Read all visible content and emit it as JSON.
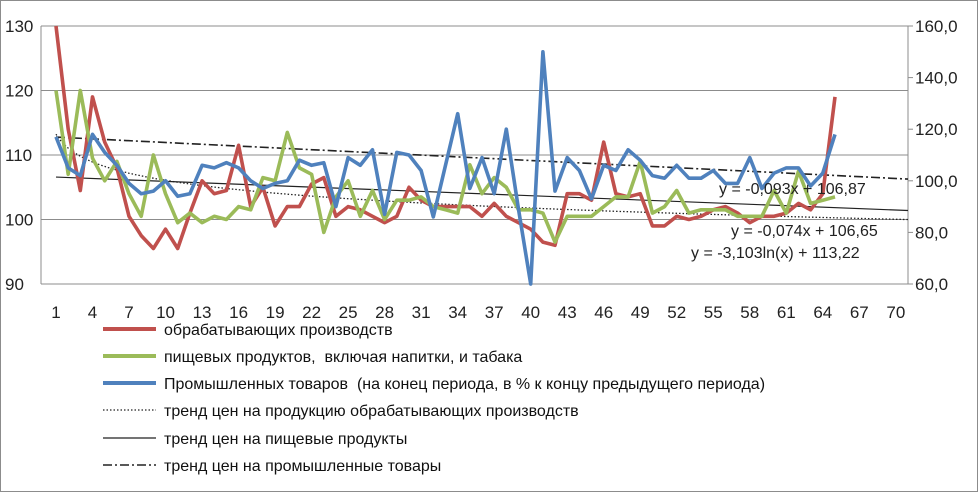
{
  "chart_data": {
    "type": "line",
    "x": [
      1,
      2,
      3,
      4,
      5,
      6,
      7,
      8,
      9,
      10,
      11,
      12,
      13,
      14,
      15,
      16,
      17,
      18,
      19,
      20,
      21,
      22,
      23,
      24,
      25,
      26,
      27,
      28,
      29,
      30,
      31,
      32,
      33,
      34,
      35,
      36,
      37,
      38,
      39,
      40,
      41,
      42,
      43,
      44,
      45,
      46,
      47,
      48,
      49,
      50,
      51,
      52,
      53,
      54,
      55,
      56,
      57,
      58,
      59,
      60,
      61,
      62,
      63,
      64,
      65
    ],
    "x_ticks": [
      "1",
      "4",
      "7",
      "10",
      "13",
      "16",
      "19",
      "22",
      "25",
      "28",
      "31",
      "34",
      "37",
      "40",
      "43",
      "46",
      "49",
      "52",
      "55",
      "58",
      "61",
      "64",
      "67",
      "70"
    ],
    "xlim": [
      1,
      71
    ],
    "y_left": {
      "ylim": [
        90,
        130
      ],
      "ticks": [
        "90",
        "100",
        "110",
        "120",
        "130"
      ]
    },
    "y_right": {
      "ylim": [
        60,
        160
      ],
      "ticks": [
        "60,0",
        "80,0",
        "100,0",
        "120,0",
        "140,0",
        "160,0"
      ]
    },
    "grid": true,
    "series": [
      {
        "name": "обрабатывающих производств",
        "axis": "left",
        "color": "#c0504d",
        "values": [
          130,
          114,
          104.5,
          119,
          112,
          108,
          100.5,
          97.5,
          95.5,
          98.5,
          95.5,
          101,
          106,
          104,
          104.5,
          111.5,
          102,
          105,
          99,
          102,
          102,
          105.5,
          106.5,
          100.5,
          102,
          101.5,
          100.5,
          99.5,
          100.5,
          105,
          103,
          102,
          102,
          102,
          102,
          100.5,
          102.5,
          100.5,
          99.5,
          98.5,
          96.5,
          96,
          104,
          104,
          103,
          112,
          104,
          103.5,
          104,
          99,
          99,
          100.5,
          100,
          100.5,
          101.5,
          102,
          101,
          99.5,
          100.5,
          100.5,
          101,
          102.5,
          101.5,
          104,
          119
        ]
      },
      {
        "name": "пищевых продуктов,  включая напитки, и табака",
        "axis": "left",
        "color": "#9bbb59",
        "values": [
          120,
          107,
          120,
          109.5,
          106,
          109,
          104,
          100.5,
          110,
          104,
          99.5,
          101,
          99.5,
          100.5,
          100,
          102,
          101.5,
          106.5,
          106,
          113.5,
          108,
          107,
          98,
          103.5,
          106,
          100.5,
          104.5,
          100,
          103,
          103,
          103.5,
          102,
          101.5,
          101,
          108.5,
          104,
          106.5,
          105,
          101.5,
          101.5,
          101,
          96.5,
          100.5,
          100.5,
          100.5,
          102,
          103.5,
          103.5,
          109,
          101,
          102,
          104.5,
          101,
          101.5,
          101.5,
          101.5,
          100.5,
          100.5,
          100.5,
          104.5,
          101,
          107.5,
          102.5,
          103,
          103.5
        ]
      },
      {
        "name": "Промышленных товаров  (на конец периода, в % к концу предыдущего периода)",
        "axis": "right",
        "color": "#4f81bd",
        "values": [
          117,
          105,
          102,
          118,
          111,
          106,
          99,
          95,
          96,
          100,
          94,
          95,
          106,
          105,
          107,
          105,
          100,
          97,
          99,
          100,
          108,
          106,
          107,
          90,
          109,
          106,
          112,
          87,
          111,
          110,
          104,
          86,
          106,
          126,
          97,
          109,
          95,
          120,
          89,
          60,
          150,
          96,
          109,
          104,
          93,
          106,
          104,
          112,
          108,
          102,
          101,
          106,
          101,
          101,
          104,
          99,
          99,
          109,
          97,
          103,
          105,
          105,
          98,
          103,
          118
        ]
      }
    ],
    "trendlines": [
      {
        "name": "тренд цен на продукцию обрабатывающих производств",
        "style": "dotted",
        "formula": "y = -3,103ln(x) + 113,22",
        "a": -3.103,
        "b": 113.22
      },
      {
        "name": "тренд цен на пищевые продукты",
        "style": "solid",
        "formula": "y = -0,074x + 106,65",
        "slope": -0.074,
        "intercept": 106.65
      },
      {
        "name": "тренд цен на промышленные товары",
        "style": "dash-dot",
        "formula": "y = -0,093x + 106,87",
        "slope": -0.093,
        "intercept": 106.87
      }
    ],
    "legend_position": "bottom"
  }
}
